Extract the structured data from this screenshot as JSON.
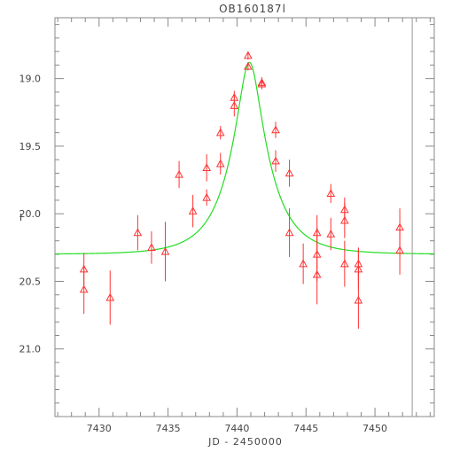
{
  "chart_data": {
    "type": "scatter",
    "title": "OB160187l",
    "xlabel": "JD - 2450000",
    "ylabel": "I",
    "xlim": [
      7426.8,
      7454.3
    ],
    "ylim": [
      21.5,
      18.55
    ],
    "y_inverted": true,
    "x_ticks": [
      7430,
      7435,
      7440,
      7445,
      7450
    ],
    "x_tick_labels": [
      "7430",
      "7435",
      "7440",
      "7445",
      "7450"
    ],
    "y_ticks": [
      19.0,
      19.5,
      20.0,
      20.5,
      21.0
    ],
    "y_tick_labels": [
      "19.0",
      "19.5",
      "20.0",
      "20.5",
      "21.0"
    ],
    "grid": false,
    "series": [
      {
        "kind": "observations",
        "marker": "triangle-open",
        "color": "#ff3333",
        "points": [
          {
            "x": 7428.9,
            "y": 20.41,
            "err": 0.12
          },
          {
            "x": 7428.9,
            "y": 20.56,
            "err": 0.18
          },
          {
            "x": 7430.8,
            "y": 20.62,
            "err": 0.2
          },
          {
            "x": 7432.8,
            "y": 20.14,
            "err": 0.13
          },
          {
            "x": 7433.8,
            "y": 20.25,
            "err": 0.12
          },
          {
            "x": 7434.8,
            "y": 20.28,
            "err": 0.22
          },
          {
            "x": 7435.8,
            "y": 19.71,
            "err": 0.1
          },
          {
            "x": 7436.8,
            "y": 19.98,
            "err": 0.12
          },
          {
            "x": 7437.8,
            "y": 19.66,
            "err": 0.1
          },
          {
            "x": 7437.8,
            "y": 19.88,
            "err": 0.06
          },
          {
            "x": 7438.8,
            "y": 19.63,
            "err": 0.08
          },
          {
            "x": 7438.8,
            "y": 19.4,
            "err": 0.05
          },
          {
            "x": 7439.8,
            "y": 19.2,
            "err": 0.08
          },
          {
            "x": 7439.8,
            "y": 19.14,
            "err": 0.05
          },
          {
            "x": 7440.8,
            "y": 18.91,
            "err": 0.03
          },
          {
            "x": 7440.8,
            "y": 18.83,
            "err": 0.03
          },
          {
            "x": 7441.8,
            "y": 19.03,
            "err": 0.04
          },
          {
            "x": 7441.8,
            "y": 19.04,
            "err": 0.04
          },
          {
            "x": 7442.8,
            "y": 19.38,
            "err": 0.06
          },
          {
            "x": 7442.8,
            "y": 19.61,
            "err": 0.08
          },
          {
            "x": 7443.8,
            "y": 19.7,
            "err": 0.1
          },
          {
            "x": 7443.8,
            "y": 20.14,
            "err": 0.18
          },
          {
            "x": 7444.8,
            "y": 20.37,
            "err": 0.15
          },
          {
            "x": 7445.8,
            "y": 20.14,
            "err": 0.13
          },
          {
            "x": 7445.8,
            "y": 20.3,
            "err": 0.2
          },
          {
            "x": 7445.8,
            "y": 20.45,
            "err": 0.22
          },
          {
            "x": 7446.8,
            "y": 19.85,
            "err": 0.07
          },
          {
            "x": 7446.8,
            "y": 20.15,
            "err": 0.12
          },
          {
            "x": 7447.8,
            "y": 19.97,
            "err": 0.09
          },
          {
            "x": 7447.8,
            "y": 20.05,
            "err": 0.13
          },
          {
            "x": 7447.8,
            "y": 20.37,
            "err": 0.17
          },
          {
            "x": 7448.8,
            "y": 20.37,
            "err": 0.12
          },
          {
            "x": 7448.8,
            "y": 20.41,
            "err": 0.15
          },
          {
            "x": 7448.8,
            "y": 20.64,
            "err": 0.21
          },
          {
            "x": 7451.8,
            "y": 20.1,
            "err": 0.14
          },
          {
            "x": 7451.8,
            "y": 20.27,
            "err": 0.18
          }
        ]
      },
      {
        "kind": "model",
        "color": "#22dd22",
        "baseline_mag": 20.3,
        "peak_time": 7440.9,
        "peak_mag": 18.88,
        "shape": "point-lens",
        "einstein_time": 2.8
      }
    ],
    "vertical_line": {
      "x": 7452.7,
      "color": "#999999"
    }
  }
}
